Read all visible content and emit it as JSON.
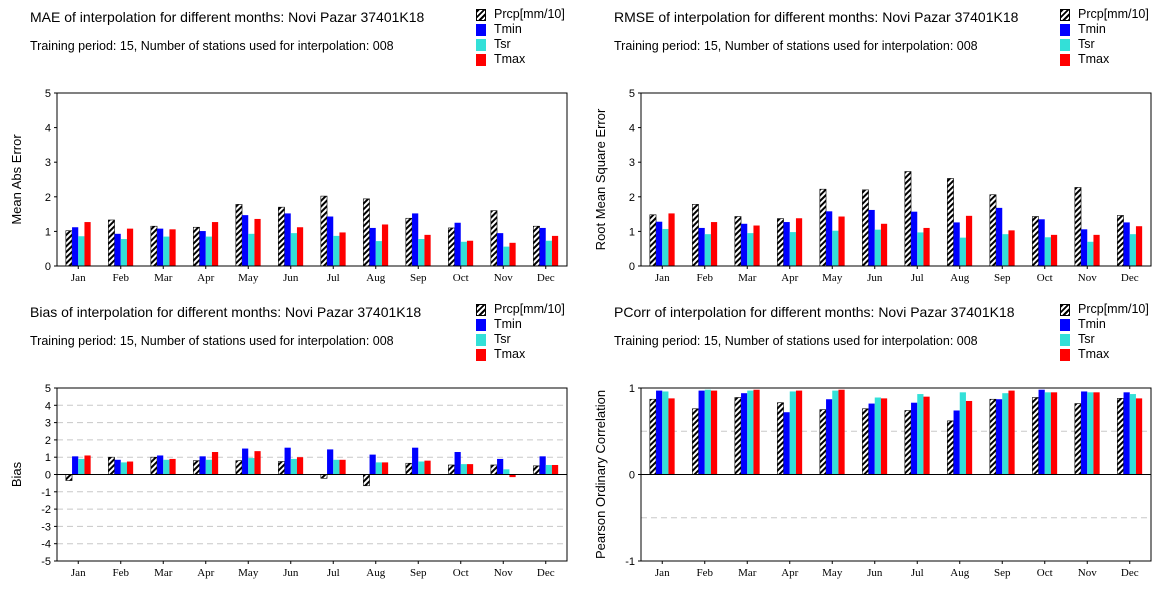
{
  "legend": {
    "items": [
      "Prcp[mm/10]",
      "Tmin",
      "Tsr",
      "Tmax"
    ]
  },
  "colors": {
    "Prcp[mm/10]": "hatch-black",
    "Tmin": "#0000ff",
    "Tsr": "#33e0d8",
    "Tmax": "#ff0000"
  },
  "chart_data": [
    {
      "type": "bar",
      "title": "MAE of interpolation for different months: Novi Pazar  37401K18",
      "subtitle": "Training period: 15, Number of stations used for interpolation: 008",
      "ylabel": "Mean Abs Error",
      "ylim": [
        0,
        5
      ],
      "yticks": [
        "0",
        "1",
        "2",
        "3",
        "4",
        "5"
      ],
      "grid": false,
      "categories": [
        "Jan",
        "Feb",
        "Mar",
        "Apr",
        "May",
        "Jun",
        "Jul",
        "Aug",
        "Sep",
        "Oct",
        "Nov",
        "Dec"
      ],
      "series": [
        {
          "name": "Prcp[mm/10]",
          "values": [
            1.02,
            1.33,
            1.15,
            1.12,
            1.78,
            1.7,
            2.02,
            1.94,
            1.38,
            1.1,
            1.6,
            1.15
          ]
        },
        {
          "name": "Tmin",
          "values": [
            1.12,
            0.93,
            1.08,
            1.01,
            1.47,
            1.52,
            1.43,
            1.1,
            1.52,
            1.25,
            0.95,
            1.1
          ]
        },
        {
          "name": "Tsr",
          "values": [
            0.86,
            0.78,
            0.85,
            0.85,
            0.93,
            0.95,
            0.87,
            0.72,
            0.78,
            0.7,
            0.56,
            0.73
          ]
        },
        {
          "name": "Tmax",
          "values": [
            1.27,
            1.08,
            1.06,
            1.27,
            1.36,
            1.12,
            0.97,
            1.2,
            0.9,
            0.73,
            0.67,
            0.87
          ]
        }
      ]
    },
    {
      "type": "bar",
      "title": "RMSE of interpolation for different months: Novi Pazar  37401K18",
      "subtitle": "Training period: 15, Number of stations used for interpolation: 008",
      "ylabel": "Root Mean Square Error",
      "ylim": [
        0,
        5
      ],
      "yticks": [
        "0",
        "1",
        "2",
        "3",
        "4",
        "5"
      ],
      "grid": false,
      "categories": [
        "Jan",
        "Feb",
        "Mar",
        "Apr",
        "May",
        "Jun",
        "Jul",
        "Aug",
        "Sep",
        "Oct",
        "Nov",
        "Dec"
      ],
      "series": [
        {
          "name": "Prcp[mm/10]",
          "values": [
            1.48,
            1.78,
            1.43,
            1.37,
            2.22,
            2.2,
            2.73,
            2.53,
            2.06,
            1.43,
            2.27,
            1.46
          ]
        },
        {
          "name": "Tmin",
          "values": [
            1.28,
            1.1,
            1.22,
            1.27,
            1.58,
            1.62,
            1.57,
            1.26,
            1.68,
            1.35,
            1.06,
            1.26
          ]
        },
        {
          "name": "Tsr",
          "values": [
            1.07,
            0.92,
            0.95,
            0.98,
            1.02,
            1.05,
            0.97,
            0.82,
            0.92,
            0.83,
            0.7,
            0.92
          ]
        },
        {
          "name": "Tmax",
          "values": [
            1.52,
            1.27,
            1.17,
            1.38,
            1.43,
            1.22,
            1.1,
            1.45,
            1.03,
            0.9,
            0.9,
            1.15
          ]
        }
      ]
    },
    {
      "type": "bar",
      "title": "Bias of interpolation for different months: Novi Pazar  37401K18",
      "subtitle": "Training period: 15, Number of stations used for interpolation: 008",
      "ylabel": "Bias",
      "ylim": [
        -5,
        5
      ],
      "yticks": [
        "-5",
        "-4",
        "-3",
        "-2",
        "-1",
        "0",
        "1",
        "2",
        "3",
        "4",
        "5"
      ],
      "grid": true,
      "categories": [
        "Jan",
        "Feb",
        "Mar",
        "Apr",
        "May",
        "Jun",
        "Jul",
        "Aug",
        "Sep",
        "Oct",
        "Nov",
        "Dec"
      ],
      "series": [
        {
          "name": "Prcp[mm/10]",
          "values": [
            -0.35,
            1.0,
            1.0,
            0.8,
            0.8,
            0.75,
            -0.22,
            -0.65,
            0.65,
            0.55,
            0.55,
            0.5
          ]
        },
        {
          "name": "Tmin",
          "values": [
            1.05,
            0.85,
            1.1,
            1.05,
            1.5,
            1.55,
            1.45,
            1.15,
            1.55,
            1.3,
            0.9,
            1.05
          ]
        },
        {
          "name": "Tsr",
          "values": [
            0.9,
            0.7,
            0.85,
            0.85,
            0.95,
            0.9,
            0.85,
            0.7,
            0.75,
            0.6,
            0.3,
            0.55
          ]
        },
        {
          "name": "Tmax",
          "values": [
            1.1,
            0.75,
            0.9,
            1.3,
            1.35,
            1.0,
            0.85,
            0.7,
            0.8,
            0.6,
            -0.15,
            0.55
          ]
        }
      ]
    },
    {
      "type": "bar",
      "title": "PCorr of interpolation for different months: Novi Pazar  37401K18",
      "subtitle": "Training period: 15, Number of stations used for interpolation: 008",
      "ylabel": "Pearson Ordinary Correlation",
      "ylim": [
        -1,
        1
      ],
      "yticks": [
        "-1",
        "0",
        "1"
      ],
      "grid": true,
      "categories": [
        "Jan",
        "Feb",
        "Mar",
        "Apr",
        "May",
        "Jun",
        "Jul",
        "Aug",
        "Sep",
        "Oct",
        "Nov",
        "Dec"
      ],
      "series": [
        {
          "name": "Prcp[mm/10]",
          "values": [
            0.87,
            0.76,
            0.89,
            0.83,
            0.75,
            0.76,
            0.74,
            0.62,
            0.87,
            0.89,
            0.82,
            0.88
          ]
        },
        {
          "name": "Tmin",
          "values": [
            0.97,
            0.97,
            0.94,
            0.72,
            0.87,
            0.82,
            0.83,
            0.74,
            0.87,
            0.98,
            0.96,
            0.95
          ]
        },
        {
          "name": "Tsr",
          "values": [
            0.96,
            0.98,
            0.97,
            0.96,
            0.97,
            0.89,
            0.93,
            0.95,
            0.94,
            0.95,
            0.95,
            0.93
          ]
        },
        {
          "name": "Tmax",
          "values": [
            0.88,
            0.97,
            0.98,
            0.97,
            0.98,
            0.88,
            0.9,
            0.85,
            0.97,
            0.95,
            0.95,
            0.88
          ]
        }
      ]
    }
  ]
}
